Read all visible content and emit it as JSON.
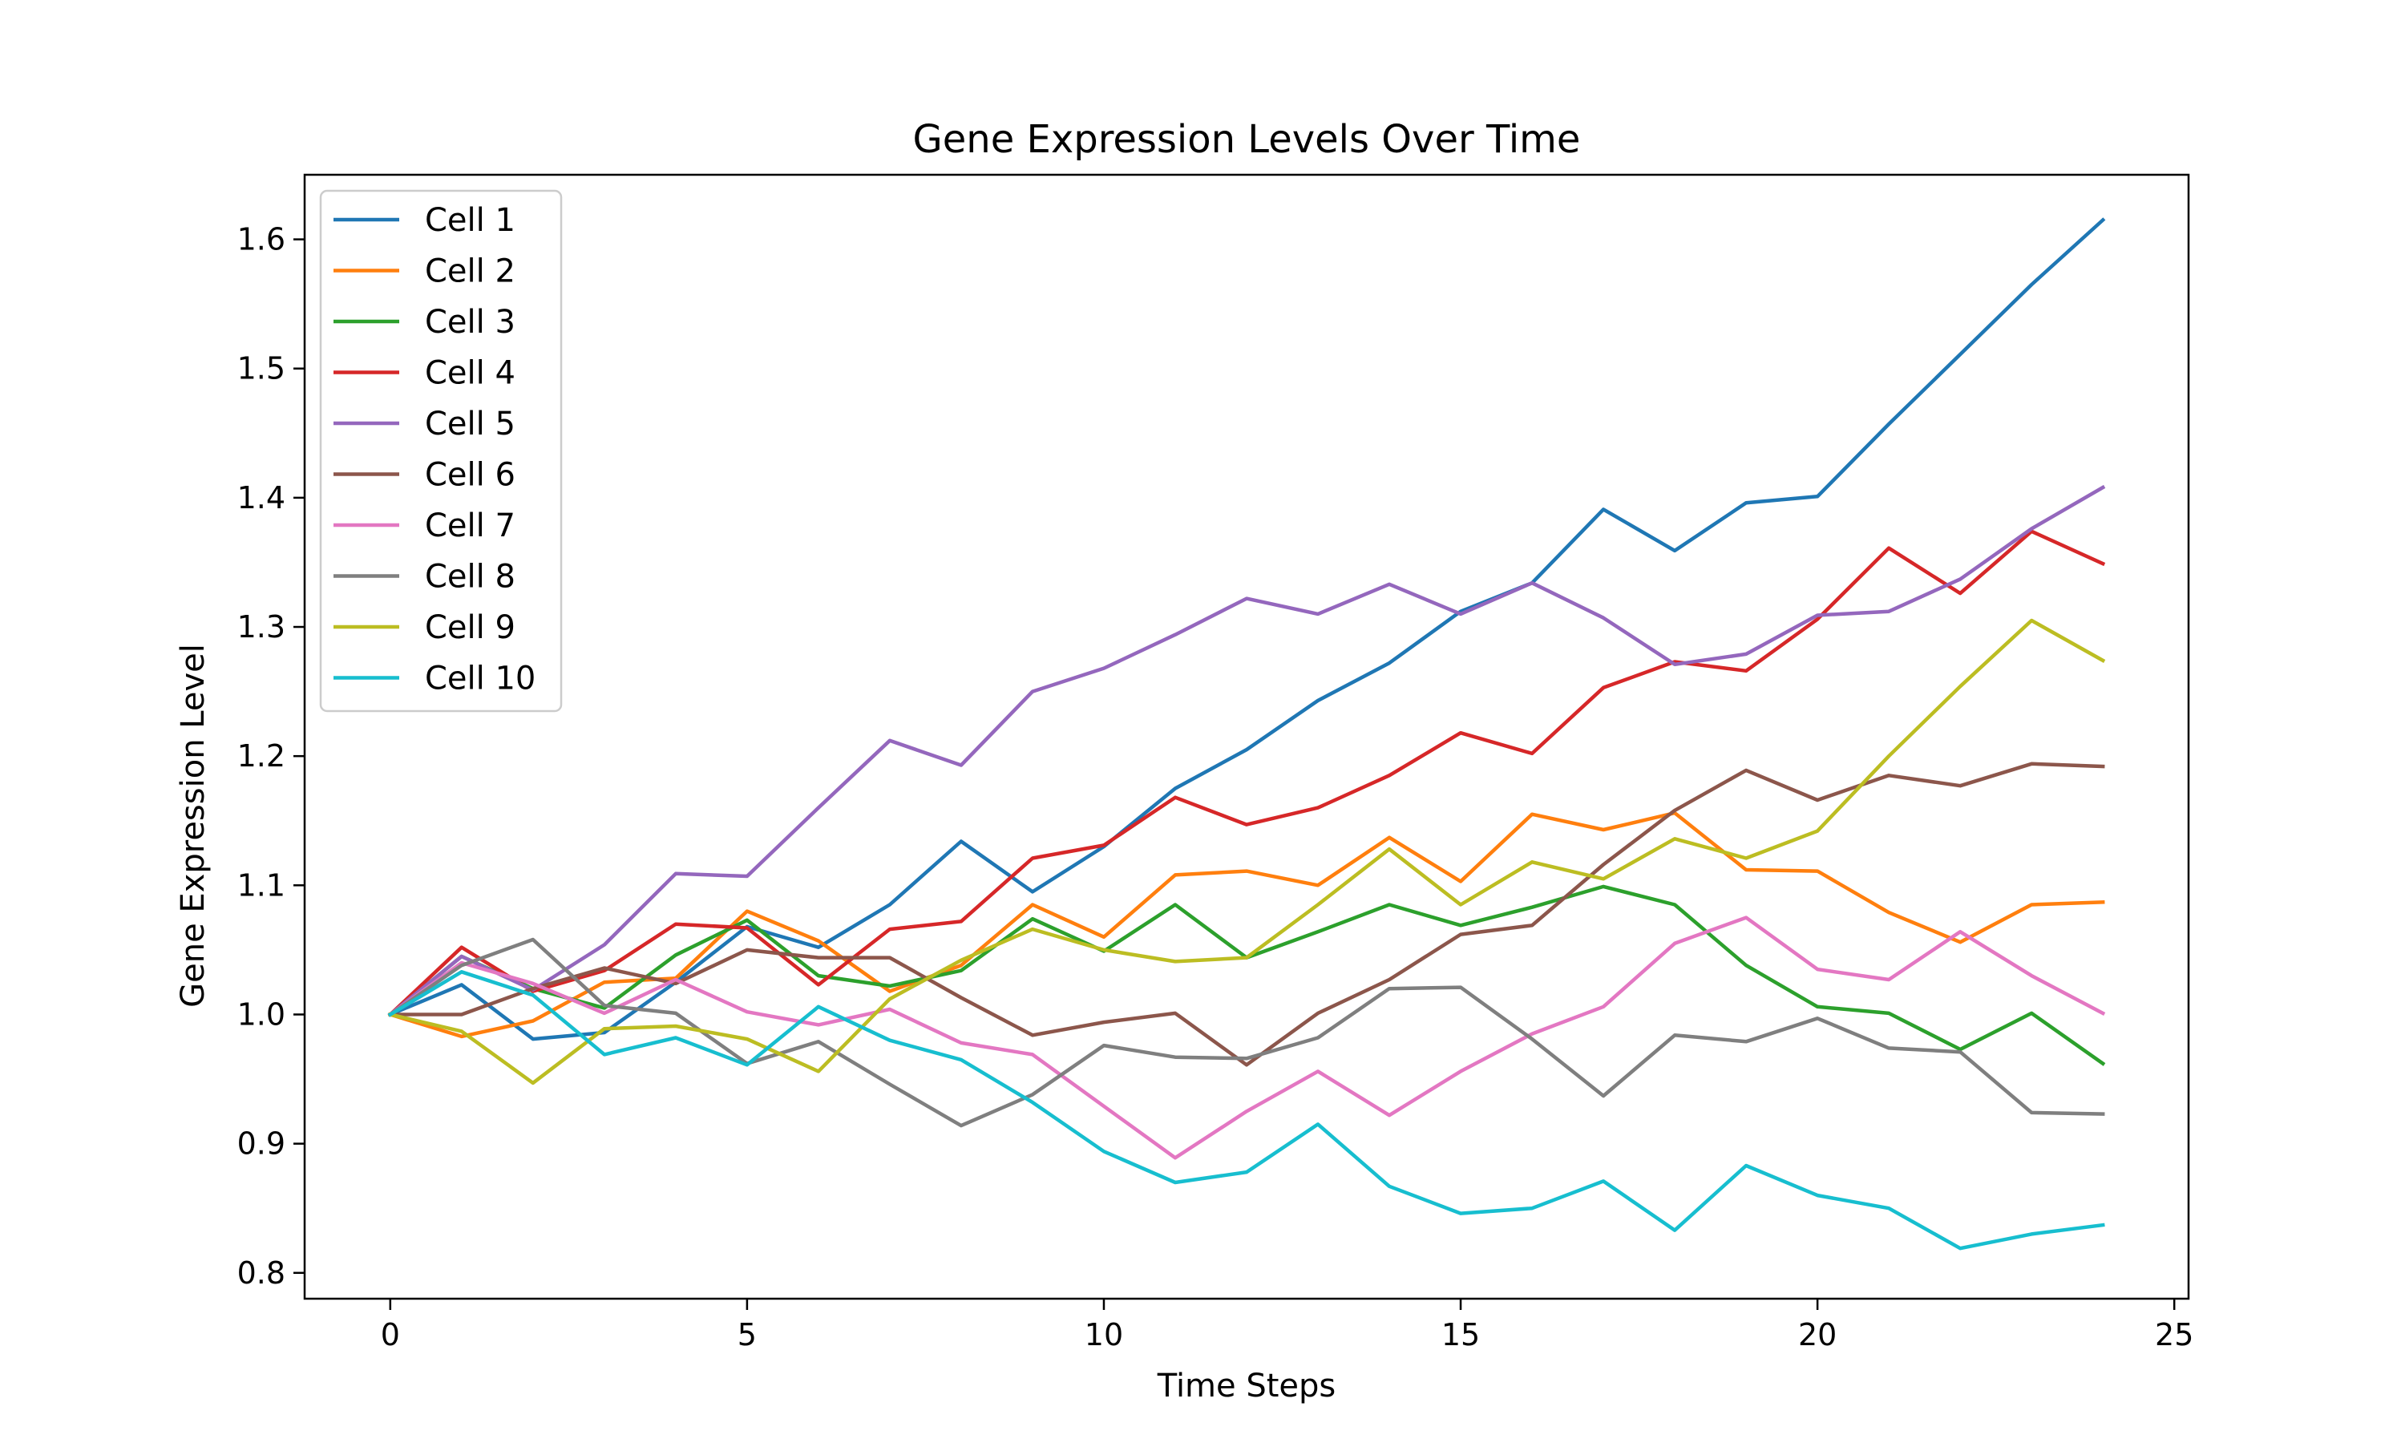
{
  "chart_data": {
    "type": "line",
    "title": "Gene Expression Levels Over Time",
    "xlabel": "Time Steps",
    "ylabel": "Gene Expression Level",
    "xlim": [
      -1.2,
      25.2
    ],
    "ylim": [
      0.78,
      1.65
    ],
    "xticks": [
      0,
      5,
      10,
      15,
      20,
      25
    ],
    "yticks": [
      0.8,
      0.9,
      1.0,
      1.1,
      1.2,
      1.3,
      1.4,
      1.5,
      1.6
    ],
    "x": [
      0,
      1,
      2,
      3,
      4,
      5,
      6,
      7,
      8,
      9,
      10,
      11,
      12,
      13,
      14,
      15,
      16,
      17,
      18,
      19,
      20,
      21,
      22,
      23,
      24
    ],
    "grid": false,
    "legend_position": "upper-left",
    "series": [
      {
        "name": "Cell 1",
        "color": "#1f77b4",
        "values": [
          1.0,
          1.023,
          0.981,
          0.986,
          1.025,
          1.068,
          1.052,
          1.085,
          1.134,
          1.095,
          1.13,
          1.175,
          1.205,
          1.243,
          1.272,
          1.312,
          1.334,
          1.391,
          1.359,
          1.396,
          1.401,
          1.457,
          1.511,
          1.565,
          1.615
        ]
      },
      {
        "name": "Cell 2",
        "color": "#ff7f0e",
        "values": [
          1.0,
          0.983,
          0.995,
          1.025,
          1.028,
          1.08,
          1.057,
          1.018,
          1.038,
          1.085,
          1.06,
          1.108,
          1.111,
          1.1,
          1.137,
          1.103,
          1.155,
          1.143,
          1.156,
          1.112,
          1.111,
          1.079,
          1.056,
          1.085,
          1.087
        ]
      },
      {
        "name": "Cell 3",
        "color": "#2ca02c",
        "values": [
          1.0,
          1.045,
          1.02,
          1.005,
          1.046,
          1.073,
          1.03,
          1.022,
          1.034,
          1.074,
          1.049,
          1.085,
          1.044,
          1.064,
          1.085,
          1.069,
          1.083,
          1.099,
          1.085,
          1.038,
          1.006,
          1.001,
          0.973,
          1.001,
          0.962
        ]
      },
      {
        "name": "Cell 4",
        "color": "#d62728",
        "values": [
          1.0,
          1.052,
          1.018,
          1.034,
          1.07,
          1.067,
          1.023,
          1.066,
          1.072,
          1.121,
          1.131,
          1.168,
          1.147,
          1.16,
          1.185,
          1.218,
          1.202,
          1.253,
          1.273,
          1.266,
          1.306,
          1.361,
          1.326,
          1.374,
          1.349
        ]
      },
      {
        "name": "Cell 5",
        "color": "#9467bd",
        "values": [
          1.0,
          1.045,
          1.019,
          1.054,
          1.109,
          1.107,
          1.16,
          1.212,
          1.193,
          1.25,
          1.268,
          1.294,
          1.322,
          1.31,
          1.333,
          1.31,
          1.334,
          1.307,
          1.271,
          1.279,
          1.309,
          1.312,
          1.337,
          1.376,
          1.408
        ]
      },
      {
        "name": "Cell 6",
        "color": "#8c564b",
        "values": [
          1.0,
          1.0,
          1.02,
          1.036,
          1.024,
          1.05,
          1.044,
          1.044,
          1.013,
          0.984,
          0.994,
          1.001,
          0.961,
          1.001,
          1.027,
          1.062,
          1.069,
          1.116,
          1.158,
          1.189,
          1.166,
          1.185,
          1.177,
          1.194,
          1.192
        ]
      },
      {
        "name": "Cell 7",
        "color": "#e377c2",
        "values": [
          1.0,
          1.04,
          1.024,
          1.001,
          1.027,
          1.002,
          0.992,
          1.004,
          0.978,
          0.969,
          0.929,
          0.889,
          0.925,
          0.956,
          0.922,
          0.956,
          0.985,
          1.006,
          1.055,
          1.075,
          1.035,
          1.027,
          1.064,
          1.03,
          1.001
        ]
      },
      {
        "name": "Cell 8",
        "color": "#7f7f7f",
        "values": [
          1.0,
          1.038,
          1.058,
          1.007,
          1.001,
          0.962,
          0.979,
          0.946,
          0.914,
          0.938,
          0.976,
          0.967,
          0.966,
          0.982,
          1.02,
          1.021,
          0.981,
          0.937,
          0.984,
          0.979,
          0.997,
          0.974,
          0.971,
          0.924,
          0.923
        ]
      },
      {
        "name": "Cell 9",
        "color": "#bcbd22",
        "values": [
          1.0,
          0.987,
          0.947,
          0.989,
          0.991,
          0.981,
          0.956,
          1.012,
          1.042,
          1.066,
          1.05,
          1.041,
          1.044,
          1.085,
          1.128,
          1.085,
          1.118,
          1.105,
          1.136,
          1.121,
          1.142,
          1.2,
          1.254,
          1.305,
          1.274
        ]
      },
      {
        "name": "Cell 10",
        "color": "#17becf",
        "values": [
          1.0,
          1.033,
          1.015,
          0.969,
          0.982,
          0.961,
          1.006,
          0.98,
          0.965,
          0.932,
          0.894,
          0.87,
          0.878,
          0.915,
          0.867,
          0.846,
          0.85,
          0.871,
          0.833,
          0.883,
          0.86,
          0.85,
          0.819,
          0.83,
          0.837
        ]
      }
    ]
  }
}
